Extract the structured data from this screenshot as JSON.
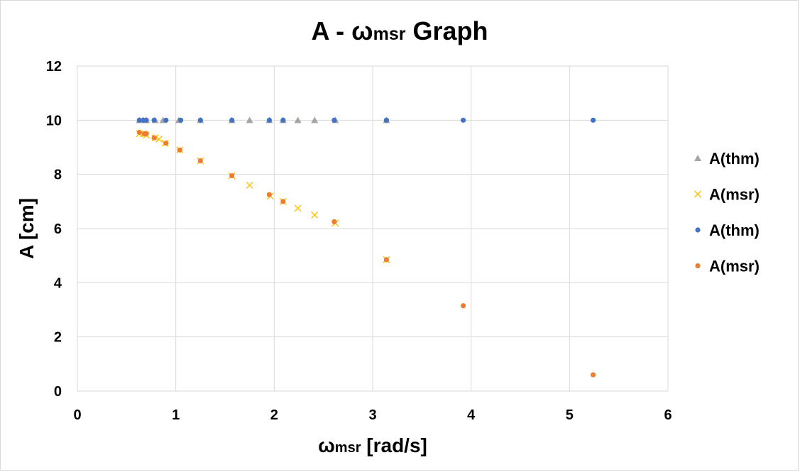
{
  "chart_data": {
    "type": "scatter",
    "title": {
      "main_prefix": "A - ω",
      "sub": "msr",
      "main_suffix": " Graph"
    },
    "xlabel": {
      "prefix": "ω",
      "sub": "msr",
      "suffix": " [rad/s]"
    },
    "ylabel": "A [cm]",
    "xlim": [
      0,
      6
    ],
    "ylim": [
      0,
      12
    ],
    "xticks": [
      0,
      1,
      2,
      3,
      4,
      5,
      6
    ],
    "yticks": [
      0,
      2,
      4,
      6,
      8,
      10,
      12
    ],
    "grid": true,
    "legend_position": "right",
    "series": [
      {
        "name": "A(thm)",
        "marker": "triangle",
        "color": "#a5a5a5",
        "x": [
          0.63,
          0.67,
          0.7,
          0.79,
          0.87,
          1.03,
          1.25,
          1.57,
          1.75,
          1.95,
          2.09,
          2.24,
          2.41,
          2.62,
          3.14
        ],
        "y": [
          10,
          10,
          10,
          10,
          10,
          10,
          10,
          10,
          10,
          10,
          10,
          10,
          10,
          10,
          10
        ]
      },
      {
        "name": "A(msr)",
        "marker": "x",
        "color": "#ffc000",
        "x": [
          0.63,
          0.67,
          0.7,
          0.79,
          0.83,
          0.89,
          1.04,
          1.25,
          1.57,
          1.75,
          1.96,
          2.09,
          2.24,
          2.41,
          2.62,
          3.14
        ],
        "y": [
          9.5,
          9.5,
          9.45,
          9.35,
          9.3,
          9.15,
          8.9,
          8.5,
          7.95,
          7.6,
          7.2,
          7.0,
          6.75,
          6.5,
          6.2,
          4.85
        ]
      },
      {
        "name": "A(thm)",
        "marker": "circle",
        "color": "#4472c4",
        "x": [
          0.63,
          0.67,
          0.7,
          0.78,
          0.9,
          1.05,
          1.25,
          1.57,
          1.95,
          2.09,
          2.61,
          3.14,
          3.92,
          5.24
        ],
        "y": [
          10,
          10,
          10,
          10,
          10,
          10,
          10,
          10,
          10,
          10,
          10,
          10,
          10,
          10
        ]
      },
      {
        "name": "A(msr)",
        "marker": "circle",
        "color": "#ed7d31",
        "x": [
          0.63,
          0.68,
          0.7,
          0.78,
          0.9,
          1.04,
          1.25,
          1.57,
          1.95,
          2.09,
          2.61,
          3.14,
          3.92,
          5.24
        ],
        "y": [
          9.55,
          9.5,
          9.5,
          9.35,
          9.15,
          8.9,
          8.5,
          7.95,
          7.25,
          7.0,
          6.25,
          4.85,
          3.15,
          0.6
        ]
      }
    ]
  }
}
